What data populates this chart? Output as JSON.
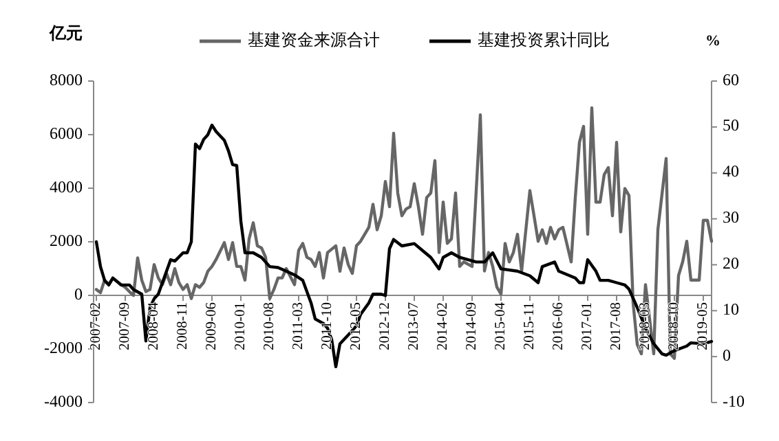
{
  "chart_data": {
    "type": "line",
    "ylabel": "亿元",
    "y2label": "%",
    "legend": "top",
    "xlim": [
      "2007-02",
      "2019-07"
    ],
    "xticks": [
      "2007-02",
      "2007-09",
      "2008-04",
      "2008-11",
      "2009-06",
      "2010-01",
      "2010-08",
      "2011-03",
      "2011-10",
      "2012-05",
      "2012-12",
      "2013-07",
      "2014-02",
      "2014-09",
      "2015-04",
      "2015-11",
      "2016-06",
      "2017-01",
      "2017-08",
      "2018-03",
      "2018-10",
      "2019-05"
    ],
    "ylim": [
      -4000,
      8000
    ],
    "yticks": [
      -4000,
      -2000,
      0,
      2000,
      4000,
      6000,
      8000
    ],
    "y2lim": [
      -10,
      60
    ],
    "y2ticks": [
      -10,
      0,
      10,
      20,
      30,
      40,
      50,
      60
    ],
    "series": [
      {
        "name": "基建资金来源合计",
        "color": "#666666",
        "x": [
          "2007-02",
          "2007-03",
          "2007-04",
          "2007-05",
          "2007-06",
          "2007-08",
          "2007-09",
          "2007-10",
          "2007-11",
          "2007-12",
          "2008-01",
          "2008-02",
          "2008-03",
          "2008-04",
          "2008-05",
          "2008-06",
          "2008-07",
          "2008-08",
          "2008-09",
          "2008-10",
          "2008-11",
          "2008-12",
          "2009-01",
          "2009-02",
          "2009-03",
          "2009-04",
          "2009-05",
          "2009-06",
          "2009-07",
          "2009-09",
          "2009-10",
          "2009-11",
          "2009-12",
          "2010-01",
          "2010-02",
          "2010-03",
          "2010-04",
          "2010-05",
          "2010-06",
          "2010-07",
          "2010-08",
          "2010-09",
          "2010-10",
          "2010-11",
          "2010-12",
          "2011-02",
          "2011-03",
          "2011-04",
          "2011-05",
          "2011-06",
          "2011-07",
          "2011-08",
          "2011-09",
          "2011-10",
          "2011-12",
          "2012-01",
          "2012-02",
          "2012-03",
          "2012-04",
          "2012-05",
          "2012-06",
          "2012-08",
          "2012-09",
          "2012-10",
          "2012-11",
          "2012-12",
          "2013-01",
          "2013-02",
          "2013-03",
          "2013-04",
          "2013-05",
          "2013-06",
          "2013-07",
          "2013-08",
          "2013-09",
          "2013-10",
          "2013-11",
          "2013-12",
          "2014-01",
          "2014-02",
          "2014-03",
          "2014-04",
          "2014-05",
          "2014-06",
          "2014-07",
          "2014-09",
          "2014-11",
          "2014-12",
          "2015-01",
          "2015-02",
          "2015-03",
          "2015-04",
          "2015-05",
          "2015-06",
          "2015-07",
          "2015-08",
          "2015-09",
          "2015-11",
          "2015-12",
          "2016-01",
          "2016-02",
          "2016-03",
          "2016-04",
          "2016-05",
          "2016-06",
          "2016-07",
          "2016-09",
          "2016-10",
          "2016-11",
          "2016-12",
          "2017-01",
          "2017-02",
          "2017-03",
          "2017-04",
          "2017-05",
          "2017-06",
          "2017-07",
          "2017-08",
          "2017-09",
          "2017-10",
          "2017-11",
          "2017-12",
          "2018-01",
          "2018-02",
          "2018-03",
          "2018-05",
          "2018-06",
          "2018-08",
          "2018-09",
          "2018-10",
          "2018-11",
          "2018-12",
          "2019-01",
          "2019-02",
          "2019-04",
          "2019-05",
          "2019-06",
          "2019-07"
        ],
        "values": [
          220,
          100,
          570,
          400,
          650,
          400,
          300,
          140,
          0,
          1400,
          570,
          140,
          220,
          1150,
          650,
          400,
          820,
          400,
          1000,
          480,
          220,
          400,
          -120,
          400,
          300,
          480,
          900,
          1080,
          1340,
          1970,
          1340,
          1970,
          1080,
          1080,
          570,
          2110,
          2710,
          1850,
          1770,
          1420,
          -120,
          220,
          650,
          650,
          1000,
          400,
          1680,
          1940,
          1420,
          1340,
          1080,
          1600,
          650,
          1600,
          1850,
          900,
          1770,
          1150,
          820,
          1850,
          2020,
          2540,
          3400,
          2450,
          2970,
          4250,
          3310,
          6050,
          3820,
          2970,
          3220,
          3310,
          4170,
          3310,
          2280,
          3650,
          3820,
          5030,
          1600,
          3480,
          1940,
          2110,
          3820,
          1080,
          1250,
          1080,
          6740,
          910,
          1600,
          1080,
          310,
          50,
          1940,
          1250,
          1600,
          2280,
          910,
          3910,
          2970,
          2020,
          2450,
          1940,
          2540,
          2110,
          2450,
          2540,
          1250,
          3650,
          5710,
          6310,
          2280,
          7000,
          3480,
          3480,
          4510,
          4770,
          2970,
          5710,
          2370,
          3990,
          3730,
          -290,
          -1830,
          -2180,
          400,
          -2180,
          2450,
          5110,
          -2180,
          -2350,
          740,
          1250,
          2020,
          570,
          570,
          2800,
          2800,
          2020
        ]
      },
      {
        "name": "基建投资累计同比",
        "color": "#000000",
        "axis": "y2",
        "x": [
          "2007-02",
          "2007-03",
          "2007-04",
          "2007-05",
          "2007-06",
          "2007-08",
          "2007-10",
          "2007-11",
          "2008-01",
          "2008-02",
          "2008-03",
          "2008-04",
          "2008-05",
          "2008-07",
          "2008-08",
          "2008-09",
          "2008-11",
          "2008-12",
          "2009-01",
          "2009-02",
          "2009-03",
          "2009-04",
          "2009-05",
          "2009-06",
          "2009-07",
          "2009-09",
          "2009-10",
          "2009-11",
          "2009-12",
          "2010-01",
          "2010-02",
          "2010-04",
          "2010-06",
          "2010-08",
          "2010-10",
          "2010-12",
          "2011-02",
          "2011-04",
          "2011-06",
          "2011-07",
          "2011-09",
          "2011-10",
          "2011-11",
          "2011-12",
          "2012-01",
          "2012-03",
          "2012-05",
          "2012-06",
          "2012-08",
          "2012-09",
          "2012-11",
          "2012-12",
          "2013-01",
          "2013-02",
          "2013-04",
          "2013-07",
          "2013-09",
          "2013-11",
          "2014-01",
          "2014-02",
          "2014-04",
          "2014-06",
          "2014-10",
          "2014-12",
          "2015-02",
          "2015-04",
          "2015-08",
          "2015-11",
          "2016-01",
          "2016-02",
          "2016-05",
          "2016-06",
          "2016-10",
          "2016-11",
          "2016-12",
          "2017-01",
          "2017-03",
          "2017-04",
          "2017-06",
          "2017-08",
          "2017-10",
          "2017-11",
          "2018-01",
          "2018-03",
          "2018-05",
          "2018-07",
          "2018-08",
          "2018-10",
          "2019-01",
          "2019-02",
          "2019-05",
          "2019-07"
        ],
        "values": [
          25.0,
          19.6,
          16.6,
          15.6,
          17.1,
          15.6,
          15.6,
          14.6,
          13.6,
          3.4,
          10.7,
          12.6,
          13.6,
          18.6,
          21.1,
          20.8,
          22.6,
          22.6,
          25.0,
          46.3,
          45.3,
          47.3,
          48.3,
          50.4,
          49.0,
          47.1,
          44.8,
          41.8,
          41.6,
          29.5,
          22.6,
          22.6,
          21.6,
          19.6,
          19.4,
          18.6,
          17.8,
          16.6,
          11.7,
          8.2,
          7.2,
          6.2,
          3.7,
          -2.2,
          2.8,
          4.7,
          6.7,
          9.2,
          11.7,
          13.6,
          13.6,
          13.3,
          23.5,
          25.5,
          24.1,
          24.6,
          23.1,
          21.6,
          19.1,
          21.6,
          22.6,
          21.6,
          20.6,
          20.6,
          22.6,
          19.1,
          18.6,
          17.6,
          16.1,
          19.6,
          20.6,
          18.6,
          17.1,
          16.1,
          16.1,
          21.1,
          18.6,
          16.6,
          16.6,
          16.1,
          15.6,
          14.7,
          10.7,
          6.2,
          2.8,
          0.6,
          0.3,
          1.3,
          2.3,
          3.0,
          2.8,
          3.3
        ]
      }
    ]
  }
}
